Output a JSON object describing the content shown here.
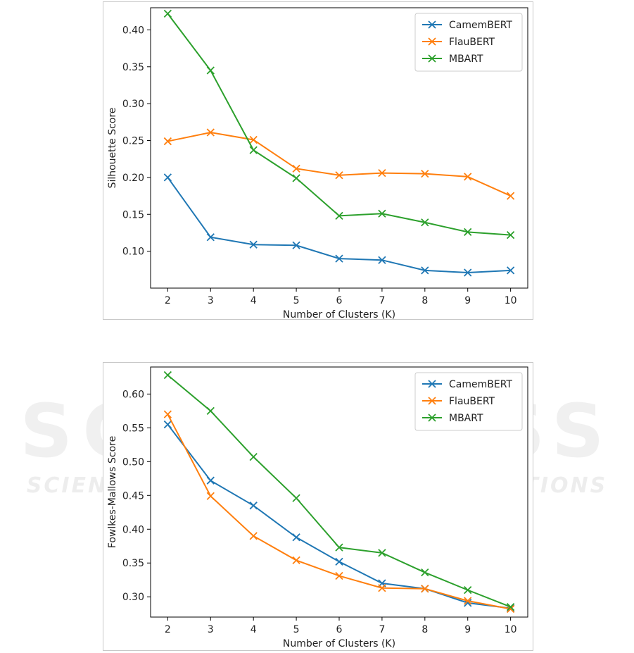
{
  "colors": {
    "camembert": "#1f77b4",
    "flaubert": "#ff7f0e",
    "mbart": "#2ca02c"
  },
  "watermark": {
    "title": "SCITEPRESS",
    "subtitle": "SCIENCE AND TECHNOLOGY PUBLICATIONS"
  },
  "chart_data": [
    {
      "type": "line",
      "xlabel": "Number of Clusters (K)",
      "ylabel": "Silhouette Score",
      "x": [
        2,
        3,
        4,
        5,
        6,
        7,
        8,
        9,
        10
      ],
      "xlim": [
        2,
        10
      ],
      "ylim": [
        0.05,
        0.43
      ],
      "yticks": [
        0.1,
        0.15,
        0.2,
        0.25,
        0.3,
        0.35,
        0.4
      ],
      "ytick_labels": [
        "0.10",
        "0.15",
        "0.20",
        "0.25",
        "0.30",
        "0.35",
        "0.40"
      ],
      "xtick_labels": [
        "2",
        "3",
        "4",
        "5",
        "6",
        "7",
        "8",
        "9",
        "10"
      ],
      "legend_position": "top-right",
      "series": [
        {
          "name": "CamemBERT",
          "color": "#1f77b4",
          "values": [
            0.2,
            0.119,
            0.109,
            0.108,
            0.09,
            0.088,
            0.074,
            0.071,
            0.074
          ]
        },
        {
          "name": "FlauBERT",
          "color": "#ff7f0e",
          "values": [
            0.249,
            0.261,
            0.251,
            0.212,
            0.203,
            0.206,
            0.205,
            0.201,
            0.175
          ]
        },
        {
          "name": "MBART",
          "color": "#2ca02c",
          "values": [
            0.422,
            0.345,
            0.237,
            0.199,
            0.148,
            0.151,
            0.139,
            0.126,
            0.122
          ]
        }
      ]
    },
    {
      "type": "line",
      "xlabel": "Number of Clusters (K)",
      "ylabel": "Fowlkes-Mallows Score",
      "x": [
        2,
        3,
        4,
        5,
        6,
        7,
        8,
        9,
        10
      ],
      "xlim": [
        2,
        10
      ],
      "ylim": [
        0.27,
        0.64
      ],
      "yticks": [
        0.3,
        0.35,
        0.4,
        0.45,
        0.5,
        0.55,
        0.6
      ],
      "ytick_labels": [
        "0.30",
        "0.35",
        "0.40",
        "0.45",
        "0.50",
        "0.55",
        "0.60"
      ],
      "xtick_labels": [
        "2",
        "3",
        "4",
        "5",
        "6",
        "7",
        "8",
        "9",
        "10"
      ],
      "legend_position": "top-right",
      "series": [
        {
          "name": "CamemBERT",
          "color": "#1f77b4",
          "values": [
            0.555,
            0.472,
            0.435,
            0.388,
            0.352,
            0.32,
            0.312,
            0.291,
            0.283
          ]
        },
        {
          "name": "FlauBERT",
          "color": "#ff7f0e",
          "values": [
            0.57,
            0.449,
            0.39,
            0.354,
            0.331,
            0.313,
            0.312,
            0.294,
            0.282
          ]
        },
        {
          "name": "MBART",
          "color": "#2ca02c",
          "values": [
            0.628,
            0.575,
            0.507,
            0.446,
            0.373,
            0.365,
            0.336,
            0.31,
            0.285
          ]
        }
      ]
    }
  ]
}
